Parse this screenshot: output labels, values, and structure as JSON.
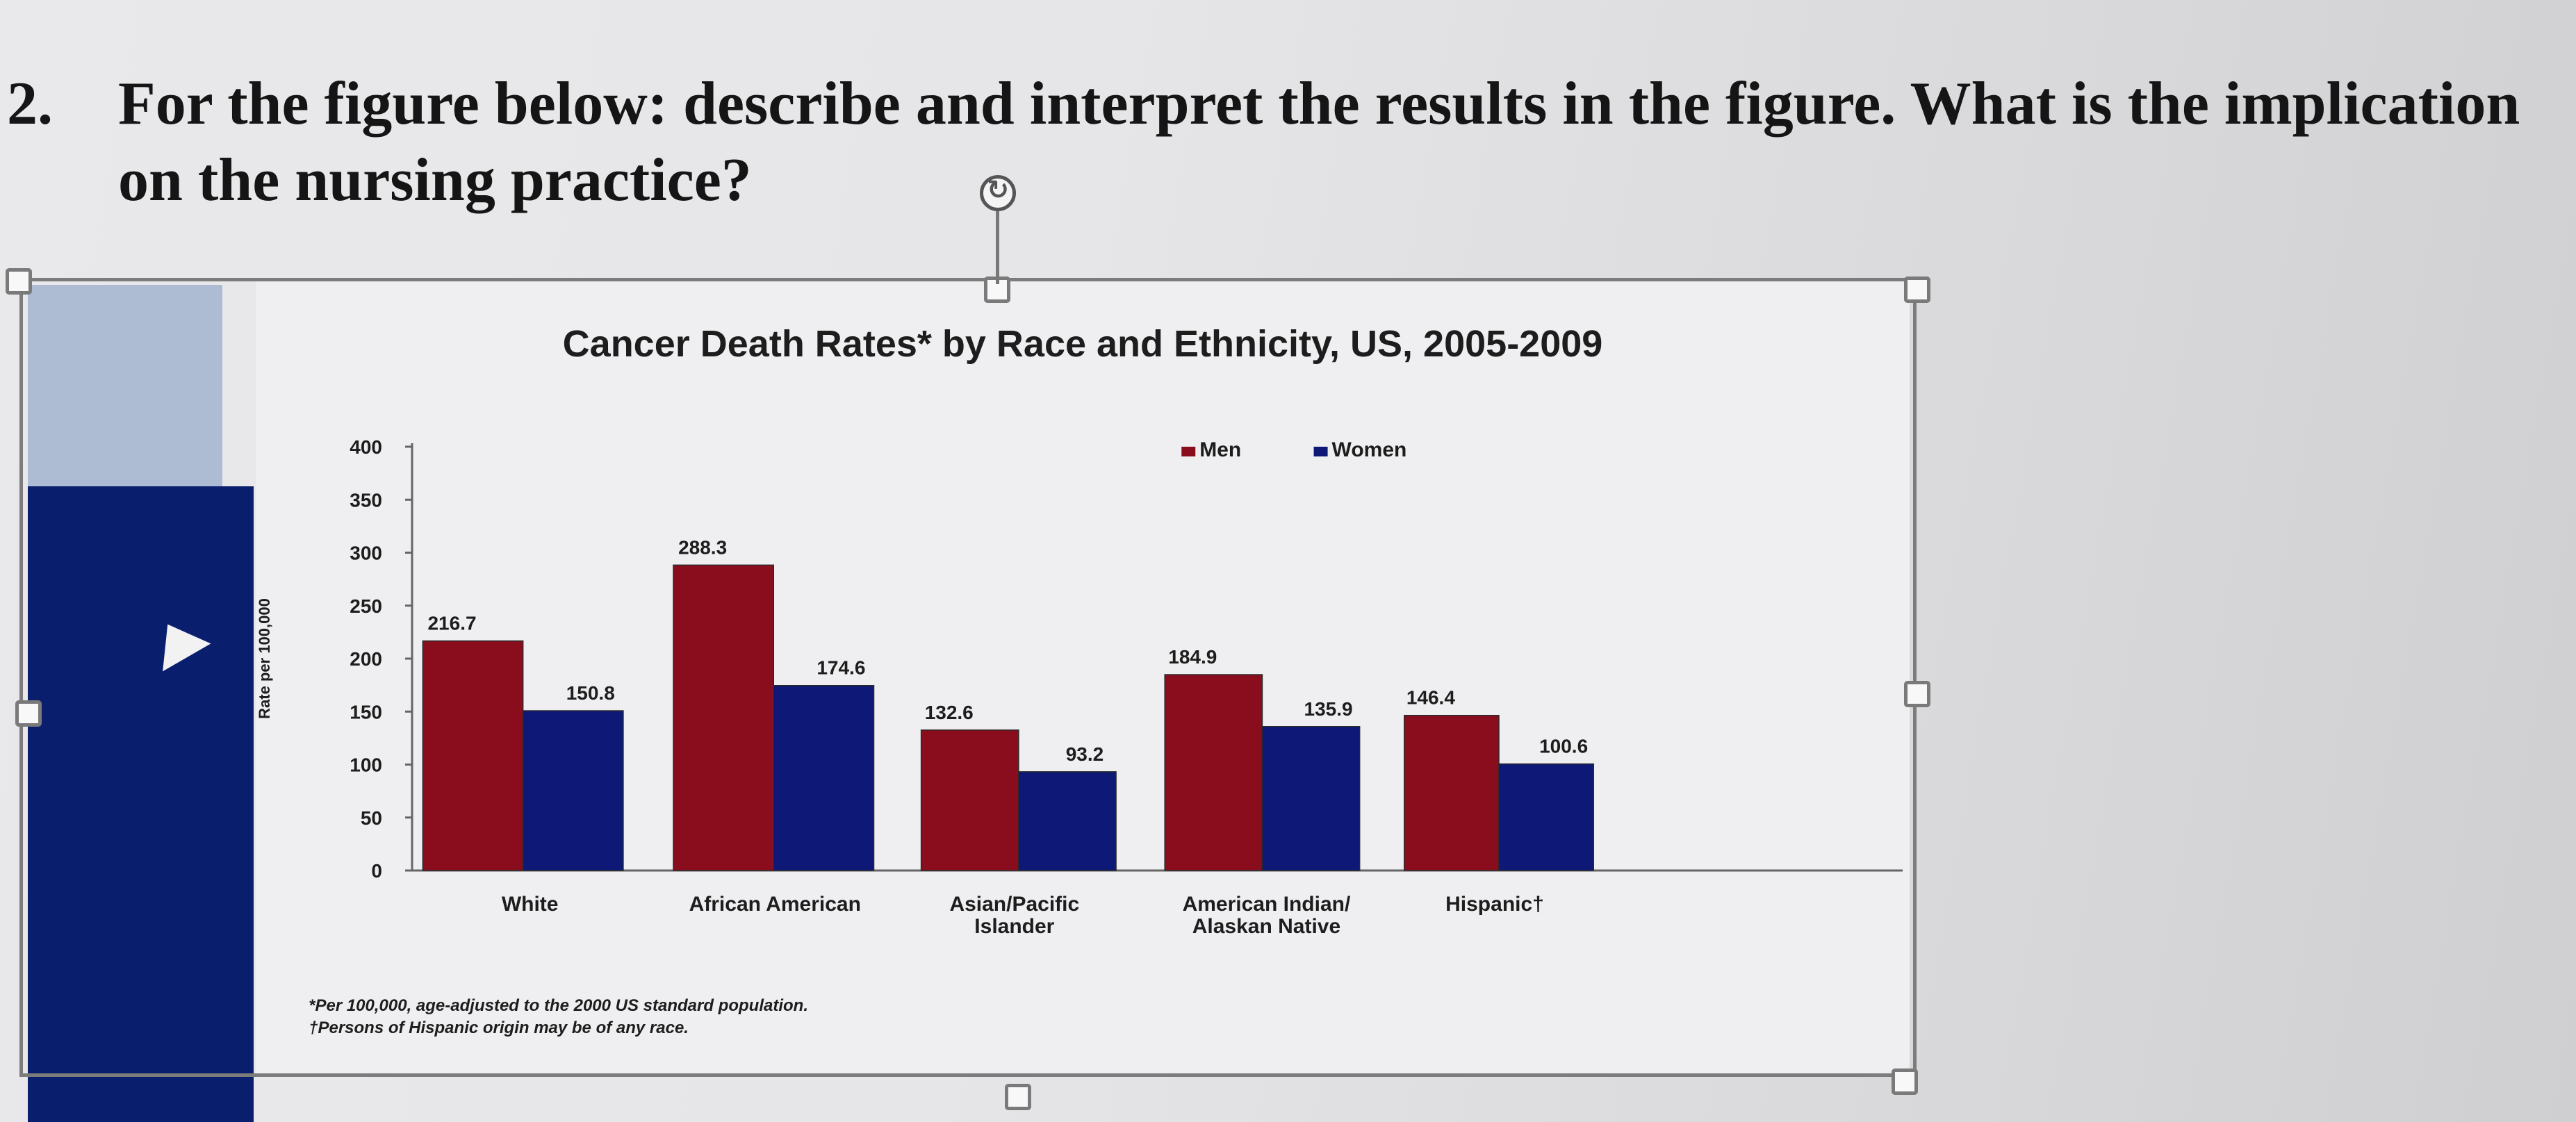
{
  "question": {
    "number": "2.",
    "line1": "For the figure below: describe and interpret the results in the figure. What is the implication",
    "line2": "on the nursing practice?"
  },
  "ui": {
    "rotate_glyph": "↻"
  },
  "chart_data": {
    "type": "bar",
    "title": "Cancer Death Rates* by Race and Ethnicity, US, 2005-2009",
    "ylabel": "Rate per 100,000",
    "ylim": [
      0,
      400
    ],
    "yticks": [
      0,
      50,
      100,
      150,
      200,
      250,
      300,
      350,
      400
    ],
    "ytick_labels": [
      "0",
      "50",
      "100",
      "150",
      "200",
      "250",
      "300",
      "350",
      "400"
    ],
    "categories": [
      [
        "White"
      ],
      [
        "African American"
      ],
      [
        "Asian/Pacific",
        "Islander"
      ],
      [
        "American Indian/",
        "Alaskan Native"
      ],
      [
        "Hispanic†"
      ]
    ],
    "series": [
      {
        "name": "Men",
        "color": "#8a0d1e",
        "values": [
          216.7,
          288.3,
          132.6,
          184.9,
          146.4
        ],
        "labels": [
          "216.7",
          "288.3",
          "132.6",
          "184.9",
          "146.4"
        ]
      },
      {
        "name": "Women",
        "color": "#0d1877",
        "values": [
          150.8,
          174.6,
          93.2,
          135.9,
          100.6
        ],
        "labels": [
          "150.8",
          "174.6",
          "93.2",
          "135.9",
          "100.6"
        ]
      }
    ],
    "legend": "top-right",
    "footnotes": [
      "*Per 100,000, age-adjusted to the 2000 US standard population.",
      "†Persons of Hispanic origin may be of any race."
    ]
  }
}
